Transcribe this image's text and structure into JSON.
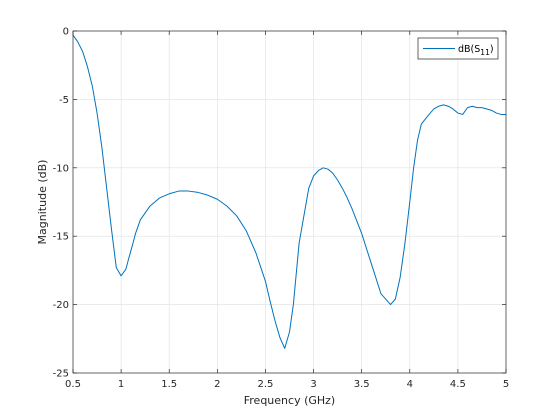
{
  "chart_data": {
    "type": "line",
    "xlabel": "Frequency (GHz)",
    "ylabel": "Magnitude (dB)",
    "xlim": [
      0.5,
      5
    ],
    "ylim": [
      -25,
      0
    ],
    "x_ticks": [
      0.5,
      1,
      1.5,
      2,
      2.5,
      3,
      3.5,
      4,
      4.5,
      5
    ],
    "y_ticks": [
      0,
      -5,
      -10,
      -15,
      -20,
      -25
    ],
    "x_tick_labels": [
      "0.5",
      "1",
      "1.5",
      "2",
      "2.5",
      "3",
      "3.5",
      "4",
      "4.5",
      "5"
    ],
    "y_tick_labels": [
      "0",
      "-5",
      "-10",
      "-15",
      "-20",
      "-25"
    ],
    "grid": true,
    "legend": {
      "placement": "top-right",
      "entry_base": "dB(S",
      "entry_subscript": "11",
      "entry_suffix": ")"
    },
    "series": [
      {
        "color": "#0072BD",
        "x": [
          0.5,
          0.55,
          0.6,
          0.65,
          0.7,
          0.75,
          0.8,
          0.85,
          0.9,
          0.95,
          1.0,
          1.05,
          1.08,
          1.12,
          1.15,
          1.2,
          1.3,
          1.4,
          1.5,
          1.6,
          1.7,
          1.8,
          1.9,
          2.0,
          2.1,
          2.2,
          2.3,
          2.4,
          2.5,
          2.55,
          2.6,
          2.65,
          2.7,
          2.75,
          2.79,
          2.81,
          2.85,
          2.9,
          2.95,
          3.0,
          3.05,
          3.1,
          3.15,
          3.2,
          3.25,
          3.3,
          3.35,
          3.4,
          3.5,
          3.6,
          3.7,
          3.8,
          3.85,
          3.9,
          3.95,
          4.0,
          4.04,
          4.08,
          4.12,
          4.2,
          4.25,
          4.3,
          4.35,
          4.4,
          4.45,
          4.5,
          4.55,
          4.6,
          4.65,
          4.7,
          4.75,
          4.8,
          4.85,
          4.9,
          4.95,
          5.0
        ],
        "y": [
          -0.3,
          -0.8,
          -1.5,
          -2.6,
          -4.0,
          -6.0,
          -8.5,
          -11.5,
          -14.5,
          -17.3,
          -17.9,
          -17.4,
          -16.6,
          -15.6,
          -14.8,
          -13.8,
          -12.8,
          -12.2,
          -11.9,
          -11.7,
          -11.7,
          -11.8,
          -12.0,
          -12.3,
          -12.8,
          -13.5,
          -14.6,
          -16.2,
          -18.3,
          -19.8,
          -21.2,
          -22.4,
          -23.2,
          -22.0,
          -20.0,
          -18.5,
          -15.5,
          -13.5,
          -11.5,
          -10.6,
          -10.2,
          -10.0,
          -10.1,
          -10.4,
          -10.9,
          -11.5,
          -12.2,
          -13.0,
          -14.8,
          -17.0,
          -19.2,
          -20.0,
          -19.6,
          -18.0,
          -15.5,
          -12.5,
          -10.0,
          -8.0,
          -6.8,
          -6.1,
          -5.7,
          -5.5,
          -5.4,
          -5.5,
          -5.7,
          -6.0,
          -6.1,
          -5.6,
          -5.5,
          -5.6,
          -5.6,
          -5.7,
          -5.8,
          -6.0,
          -6.1,
          -6.1
        ]
      }
    ]
  }
}
